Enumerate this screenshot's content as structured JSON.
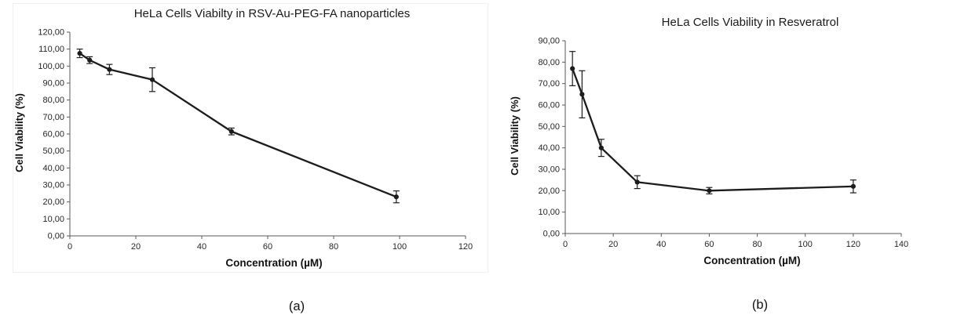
{
  "page": {
    "background": "#ffffff"
  },
  "captions": {
    "a": "(a)",
    "b": "(b)"
  },
  "chart_data": [
    {
      "id": "chart-a",
      "type": "line",
      "title": "HeLa Cells Viabilty in RSV-Au-PEG-FA nanoparticles",
      "xlabel": "Concentration (µM)",
      "ylabel": "Cell Viability (%)",
      "x": [
        3,
        6,
        12,
        25,
        49,
        99
      ],
      "y": [
        107.5,
        103.5,
        98,
        92,
        61.5,
        23
      ],
      "yerr": [
        2.5,
        2,
        3,
        7,
        2,
        3.5
      ],
      "xlim": [
        0,
        120
      ],
      "x_ticks": [
        0,
        20,
        40,
        60,
        80,
        100,
        120
      ],
      "ylim": [
        0,
        120
      ],
      "y_ticks": [
        0,
        10,
        20,
        30,
        40,
        50,
        60,
        70,
        80,
        90,
        100,
        110,
        120
      ],
      "y_tick_labels": [
        "0,00",
        "10,00",
        "20,00",
        "30,00",
        "40,00",
        "50,00",
        "60,00",
        "70,00",
        "80,00",
        "90,00",
        "100,00",
        "110,00",
        "120,00"
      ],
      "grid": false,
      "legend": "none",
      "marker": "circle",
      "line_color": "#1c1c1c",
      "axis_color": "#595959"
    },
    {
      "id": "chart-b",
      "type": "line",
      "title": "HeLa Cells Viability in Resveratrol",
      "xlabel": "Concentration (µM)",
      "ylabel": "Cell Viability (%)",
      "x": [
        3,
        7,
        15,
        30,
        60,
        120
      ],
      "y": [
        77,
        65,
        40,
        24,
        20,
        22
      ],
      "yerr": [
        8,
        11,
        4,
        3,
        1.5,
        3
      ],
      "xlim": [
        0,
        140
      ],
      "x_ticks": [
        0,
        20,
        40,
        60,
        80,
        100,
        120,
        140
      ],
      "ylim": [
        0,
        90
      ],
      "y_ticks": [
        0,
        10,
        20,
        30,
        40,
        50,
        60,
        70,
        80,
        90
      ],
      "y_tick_labels": [
        "0,00",
        "10,00",
        "20,00",
        "30,00",
        "40,00",
        "50,00",
        "60,00",
        "70,00",
        "80,00",
        "90,00"
      ],
      "grid": false,
      "legend": "none",
      "marker": "circle",
      "line_color": "#1c1c1c",
      "axis_color": "#595959"
    }
  ]
}
